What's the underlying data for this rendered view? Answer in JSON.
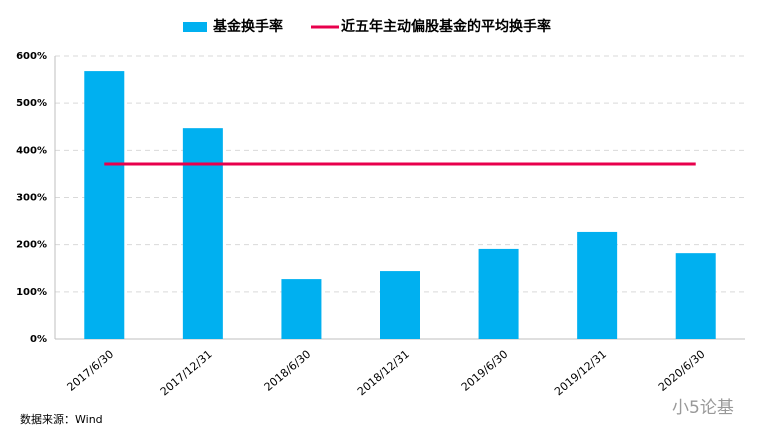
{
  "chart_data": {
    "type": "bar",
    "categories": [
      "2017/6/30",
      "2017/12/31",
      "2018/6/30",
      "2018/12/31",
      "2019/6/30",
      "2019/12/31",
      "2020/6/30"
    ],
    "series": [
      {
        "name": "基金换手率",
        "type": "bar",
        "color": "#00b0f0",
        "values": [
          568,
          447,
          127,
          144,
          191,
          227,
          182
        ]
      },
      {
        "name": "近五年主动偏股基金的平均换手率",
        "type": "line",
        "color": "#e8004c",
        "values": [
          371,
          371,
          371,
          371,
          371,
          371,
          371
        ]
      }
    ],
    "ylim": [
      0,
      600
    ],
    "yticks": [
      {
        "value": 0,
        "label": "0%"
      },
      {
        "value": 100,
        "label": "100%"
      },
      {
        "value": 200,
        "label": "200%"
      },
      {
        "value": 300,
        "label": "300%"
      },
      {
        "value": 400,
        "label": "400%"
      },
      {
        "value": 500,
        "label": "500%"
      },
      {
        "value": 600,
        "label": "600%"
      }
    ],
    "grid": true,
    "legend": "top",
    "source": "数据来源：Wind",
    "watermark": "小5论基"
  }
}
